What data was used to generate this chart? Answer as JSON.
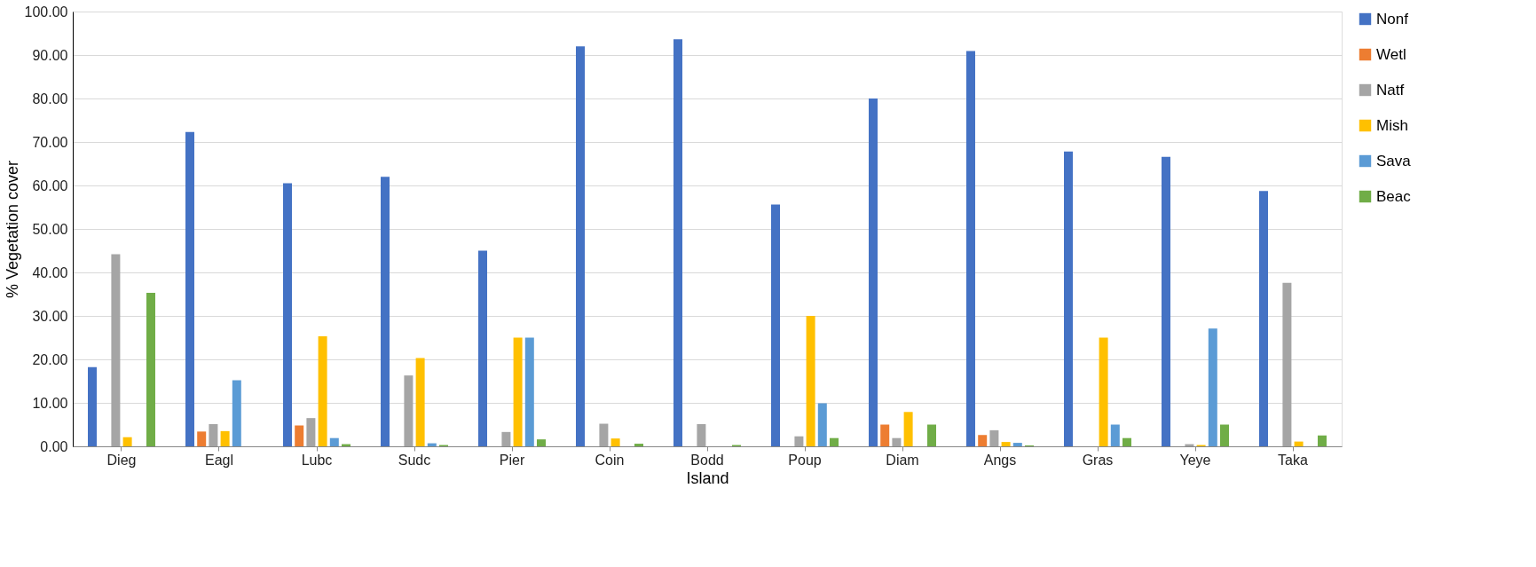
{
  "chart_data": {
    "type": "bar",
    "xlabel": "Island",
    "ylabel": "% Vegetation cover",
    "categories": [
      "Dieg",
      "Eagl",
      "Lubc",
      "Sudc",
      "Pier",
      "Coin",
      "Bodd",
      "Poup",
      "Diam",
      "Angs",
      "Gras",
      "Yeye",
      "Taka"
    ],
    "series": [
      {
        "name": "Nonf",
        "color": "#4472c4",
        "values": [
          18.2,
          72.3,
          60.5,
          62.0,
          45.0,
          92.0,
          93.6,
          55.6,
          80.0,
          90.9,
          67.8,
          66.6,
          58.7
        ]
      },
      {
        "name": "Wetl",
        "color": "#ed7d31",
        "values": [
          0,
          3.4,
          4.8,
          0,
          0,
          0,
          null,
          0,
          5.0,
          2.6,
          0,
          0,
          0
        ]
      },
      {
        "name": "Natf",
        "color": "#a5a5a5",
        "values": [
          44.2,
          5.1,
          6.5,
          16.3,
          3.3,
          5.2,
          5.1,
          2.3,
          1.9,
          3.7,
          0,
          0.5,
          37.6
        ]
      },
      {
        "name": "Mish",
        "color": "#ffc000",
        "values": [
          2.1,
          3.5,
          25.3,
          20.3,
          25.0,
          1.8,
          null,
          30.0,
          7.9,
          1.0,
          25.0,
          0.3,
          1.1
        ]
      },
      {
        "name": "Sava",
        "color": "#5b9bd5",
        "values": [
          0,
          15.2,
          1.9,
          0.7,
          25.0,
          0,
          null,
          9.9,
          0,
          0.8,
          5.0,
          27.1,
          0
        ]
      },
      {
        "name": "Beac",
        "color": "#70ad47",
        "values": [
          35.3,
          0,
          0.5,
          0.3,
          1.6,
          0.6,
          0.3,
          1.9,
          5.0,
          0.2,
          1.9,
          5.0,
          2.5
        ]
      }
    ],
    "ylim": [
      0,
      100
    ],
    "yticks": [
      {
        "value": 0,
        "label": "0.00"
      },
      {
        "value": 10,
        "label": "10.00"
      },
      {
        "value": 20,
        "label": "20.00"
      },
      {
        "value": 30,
        "label": "30.00"
      },
      {
        "value": 40,
        "label": "40.00"
      },
      {
        "value": 50,
        "label": "50.00"
      },
      {
        "value": 60,
        "label": "60.00"
      },
      {
        "value": 70,
        "label": "70.00"
      },
      {
        "value": 80,
        "label": "80.00"
      },
      {
        "value": 90,
        "label": "90.00"
      },
      {
        "value": 100,
        "label": "100.00"
      }
    ],
    "grid": "y",
    "legend": "right"
  }
}
